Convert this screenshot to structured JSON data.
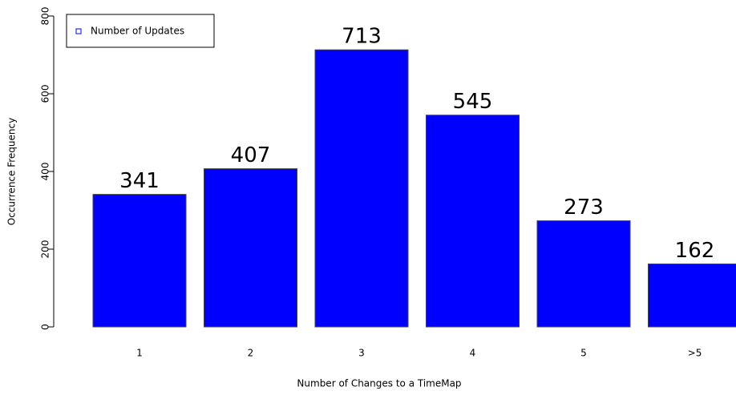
{
  "chart_data": {
    "type": "bar",
    "xlabel": "Number of Changes to a TimeMap",
    "ylabel": "Occurrence Frequency",
    "categories": [
      "1",
      "2",
      "3",
      "4",
      "5",
      ">5"
    ],
    "series": [
      {
        "name": "Number of Updates",
        "color": "#0000ff",
        "values": [
          341,
          407,
          713,
          545,
          273,
          162
        ]
      }
    ],
    "ylim": [
      0,
      800
    ],
    "yticks": [
      0,
      200,
      400,
      600,
      800
    ],
    "legend": "top-left"
  }
}
